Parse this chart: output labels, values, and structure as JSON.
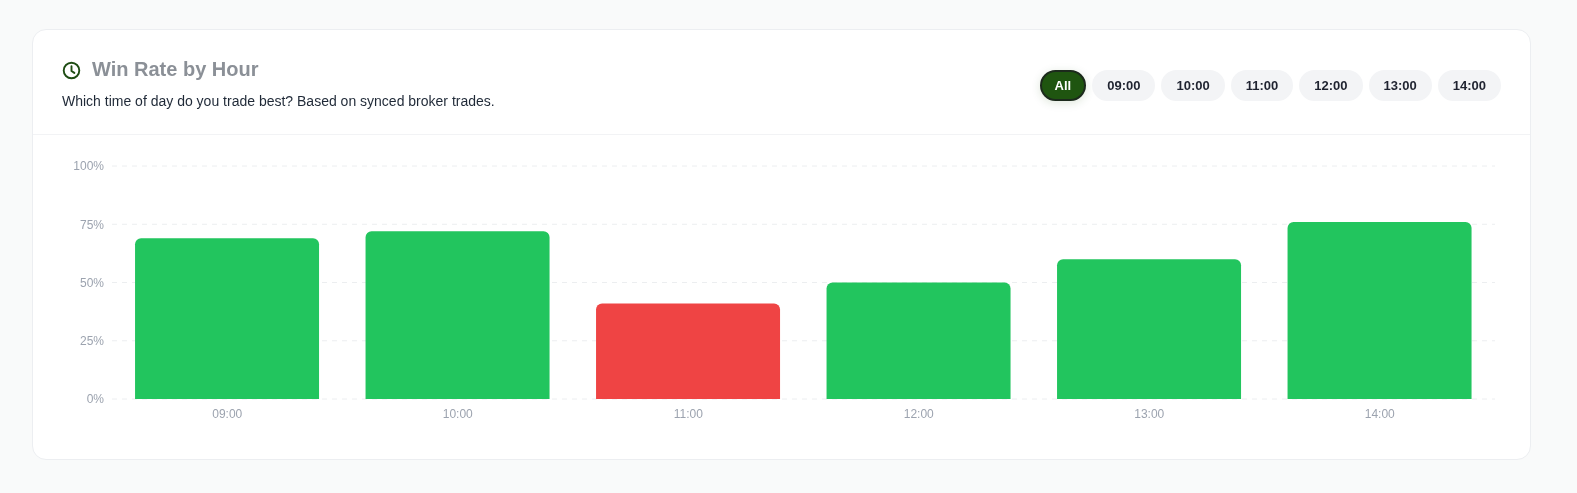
{
  "chart_data": {
    "type": "bar",
    "title": "Win Rate by Hour",
    "subtitle": "Which time of day do you trade best? Based on synced broker trades.",
    "categories": [
      "09:00",
      "10:00",
      "11:00",
      "12:00",
      "13:00",
      "14:00"
    ],
    "values": [
      69,
      72,
      41,
      50,
      60,
      76
    ],
    "colors": [
      "#22c55e",
      "#22c55e",
      "#ef4444",
      "#22c55e",
      "#22c55e",
      "#22c55e"
    ],
    "ylim": [
      0,
      100
    ],
    "yticks": [
      {
        "value": 0,
        "label": "0%"
      },
      {
        "value": 25,
        "label": "25%"
      },
      {
        "value": 50,
        "label": "50%"
      },
      {
        "value": 75,
        "label": "75%"
      },
      {
        "value": 100,
        "label": "100%"
      }
    ],
    "grid": "y",
    "annotations": [
      "All",
      "09:00",
      "10:00",
      "11:00",
      "12:00",
      "13:00",
      "14:00"
    ]
  }
}
